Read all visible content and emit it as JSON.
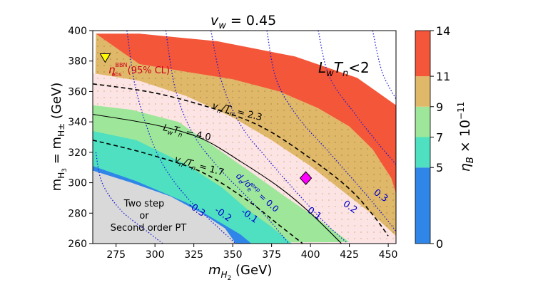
{
  "chart_data": {
    "type": "heatmap",
    "title": "v_w = 0.45",
    "title_main": "v",
    "title_sub": "w",
    "title_rest": " = 0.45",
    "x_label_main": "m",
    "x_label_sub": "H",
    "x_label_sub2": "2",
    "x_label_unit": " (GeV)",
    "y_label": "m_H3 = m_H± (GeV)",
    "xlim": [
      260,
      455
    ],
    "ylim": [
      260,
      400
    ],
    "x_ticks": [
      275,
      300,
      325,
      350,
      375,
      400,
      425,
      450
    ],
    "y_ticks": [
      260,
      280,
      300,
      320,
      340,
      360,
      380,
      400
    ],
    "colorbar": {
      "label": "η_B × 10^-11",
      "ticks": [
        0,
        5,
        7,
        9,
        11,
        14
      ],
      "bands": [
        {
          "from": 0,
          "to": 5,
          "color": "#2f86e8"
        },
        {
          "from": 5,
          "to": 7,
          "color": "#4ee0c0"
        },
        {
          "from": 7,
          "to": 9,
          "color": "#9ee79a"
        },
        {
          "from": 9,
          "to": 11,
          "color": "#e0b86a"
        },
        {
          "from": 11,
          "to": 14,
          "color": "#f4563a"
        }
      ]
    },
    "regions": [
      {
        "name": "eta-0-5",
        "color": "#2f86e8",
        "boundary": [
          [
            260,
            311
          ],
          [
            288,
            301
          ],
          [
            320,
            287
          ],
          [
            345,
            272
          ],
          [
            355,
            266
          ],
          [
            362,
            260
          ],
          [
            260,
            260
          ]
        ]
      },
      {
        "name": "eta-5-7",
        "color": "#4ee0c0",
        "boundary": [
          [
            260,
            334
          ],
          [
            288,
            328
          ],
          [
            320,
            312
          ],
          [
            343,
            297
          ],
          [
            360,
            282
          ],
          [
            375,
            271
          ],
          [
            388,
            260
          ],
          [
            260,
            260
          ]
        ]
      },
      {
        "name": "eta-7-9",
        "color": "#9ee79a",
        "boundary": [
          [
            260,
            351
          ],
          [
            285,
            348
          ],
          [
            315,
            340
          ],
          [
            342,
            321
          ],
          [
            363,
            306
          ],
          [
            385,
            290
          ],
          [
            405,
            276
          ],
          [
            425,
            261
          ],
          [
            260,
            260
          ]
        ]
      },
      {
        "name": "eta-9-11",
        "color": "#e0b86a",
        "boundary": [
          [
            262,
            398
          ],
          [
            290,
            396
          ],
          [
            330,
            391
          ],
          [
            380,
            381
          ],
          [
            420,
            367
          ],
          [
            455,
            348
          ],
          [
            455,
            260
          ],
          [
            260,
            260
          ]
        ]
      },
      {
        "name": "eta-11-14",
        "color": "#f4563a",
        "boundary": [
          [
            262,
            398
          ],
          [
            290,
            398
          ],
          [
            340,
            393
          ],
          [
            390,
            383
          ],
          [
            430,
            369
          ],
          [
            455,
            351
          ],
          [
            455,
            293
          ],
          [
            452,
            303
          ],
          [
            440,
            322
          ],
          [
            425,
            337
          ],
          [
            405,
            349
          ],
          [
            380,
            360
          ],
          [
            350,
            368
          ],
          [
            320,
            373
          ],
          [
            290,
            378
          ]
        ]
      }
    ],
    "bbn_region": {
      "color": "#fde4e4",
      "boundary": [
        [
          260,
          372
        ],
        [
          290,
          367
        ],
        [
          320,
          357
        ],
        [
          350,
          343
        ],
        [
          375,
          328
        ],
        [
          400,
          311
        ],
        [
          420,
          295
        ],
        [
          440,
          279
        ],
        [
          455,
          265
        ],
        [
          455,
          260
        ],
        [
          260,
          260
        ]
      ]
    },
    "hatched_region": {
      "label": "",
      "color": "#c9a25a"
    },
    "two_step_region": {
      "color": "#d9d9d9",
      "boundary": [
        [
          260,
          308
        ],
        [
          285,
          300
        ],
        [
          310,
          291
        ],
        [
          330,
          280
        ],
        [
          345,
          270
        ],
        [
          352,
          260
        ],
        [
          260,
          260
        ]
      ]
    },
    "reference_lines": [
      {
        "name": "vn-Tn-2.3",
        "label": "v_n/T_n = 2.3",
        "style": "dashed",
        "points": [
          [
            260,
            365
          ],
          [
            300,
            359
          ],
          [
            340,
            348
          ],
          [
            370,
            336
          ],
          [
            400,
            316
          ],
          [
            425,
            296
          ],
          [
            440,
            279
          ],
          [
            450,
            265
          ]
        ]
      },
      {
        "name": "LwTn-4.0",
        "label": "L_wT_n = 4.0",
        "style": "solid",
        "points": [
          [
            260,
            345
          ],
          [
            300,
            338
          ],
          [
            330,
            329
          ],
          [
            355,
            314
          ],
          [
            380,
            297
          ],
          [
            400,
            280
          ],
          [
            420,
            260
          ]
        ]
      },
      {
        "name": "vn-Tn-1.7",
        "label": "v_n/T_n = 1.7",
        "style": "dashed",
        "points": [
          [
            260,
            328
          ],
          [
            295,
            319
          ],
          [
            330,
            307
          ],
          [
            360,
            288
          ],
          [
            380,
            272
          ],
          [
            395,
            260
          ]
        ]
      }
    ],
    "edm_contours": [
      {
        "label": "-0.3",
        "points": [
          [
            262,
            320
          ],
          [
            266,
            300
          ],
          [
            278,
            282
          ],
          [
            295,
            268
          ],
          [
            305,
            260
          ]
        ]
      },
      {
        "label": "-0.2",
        "points": [
          [
            282,
            400
          ],
          [
            287,
            365
          ],
          [
            295,
            336
          ],
          [
            305,
            312
          ],
          [
            320,
            291
          ],
          [
            338,
            273
          ],
          [
            352,
            260
          ]
        ]
      },
      {
        "label": "-0.1",
        "points": [
          [
            307,
            400
          ],
          [
            313,
            362
          ],
          [
            324,
            333
          ],
          [
            340,
            311
          ],
          [
            358,
            292
          ],
          [
            373,
            276
          ],
          [
            386,
            260
          ]
        ]
      },
      {
        "label": "0.0",
        "points": [
          [
            336,
            400
          ],
          [
            343,
            366
          ],
          [
            355,
            338
          ],
          [
            372,
            316
          ],
          [
            390,
            295
          ],
          [
            408,
            275
          ],
          [
            424,
            260
          ]
        ]
      },
      {
        "label": "0.1",
        "points": [
          [
            372,
            400
          ],
          [
            378,
            368
          ],
          [
            392,
            343
          ],
          [
            412,
            320
          ],
          [
            430,
            299
          ],
          [
            445,
            281
          ],
          [
            455,
            268
          ]
        ]
      },
      {
        "label": "0.2",
        "points": [
          [
            405,
            400
          ],
          [
            412,
            370
          ],
          [
            428,
            346
          ],
          [
            445,
            324
          ],
          [
            455,
            312
          ]
        ]
      },
      {
        "label": "0.3",
        "points": [
          [
            440,
            400
          ],
          [
            446,
            373
          ],
          [
            455,
            355
          ]
        ]
      }
    ],
    "benchmark_points": [
      {
        "name": "bbn-benchmark-triangle",
        "marker": "triangle",
        "color": "#ffff00",
        "x": 268,
        "y": 382
      },
      {
        "name": "edm-benchmark-diamond",
        "marker": "diamond",
        "color": "#ff00ff",
        "x": 397,
        "y": 303
      }
    ],
    "annotations": {
      "bbn_eta": "η",
      "bbn_sup": "BBN",
      "bbn_sub": "obs",
      "bbn_cl": "(95% CL)",
      "lwtn_limit_l": "L",
      "lwtn_limit_w": "w",
      "lwtn_limit_t": "T",
      "lwtn_limit_n": "n",
      "lwtn_limit_rest": "<2",
      "two_step_line1": "Two step",
      "two_step_line2": "or",
      "two_step_line3": "Second order PT",
      "vn23_v": "v",
      "vn23_n": "n",
      "vn23_t": "/T",
      "vn23_n2": "n",
      "vn23_val": " = 2.3",
      "vn17_v": "v",
      "vn17_n": "n",
      "vn17_t": "/T",
      "vn17_n2": "n",
      "vn17_val": " = 1.7",
      "lw40_l": "L",
      "lw40_w": "w",
      "lw40_t": "T",
      "lw40_n": "n",
      "lw40_val": " = 4.0",
      "edm_de": "d",
      "edm_e": "e",
      "edm_slash": "/d",
      "edm_sub": "e",
      "edm_sup": "exp",
      "edm_val": " = 0.0"
    },
    "cb_label_eta": "η",
    "cb_label_b": "B",
    "cb_label_rest": " × 10",
    "cb_label_exp": "−11"
  }
}
